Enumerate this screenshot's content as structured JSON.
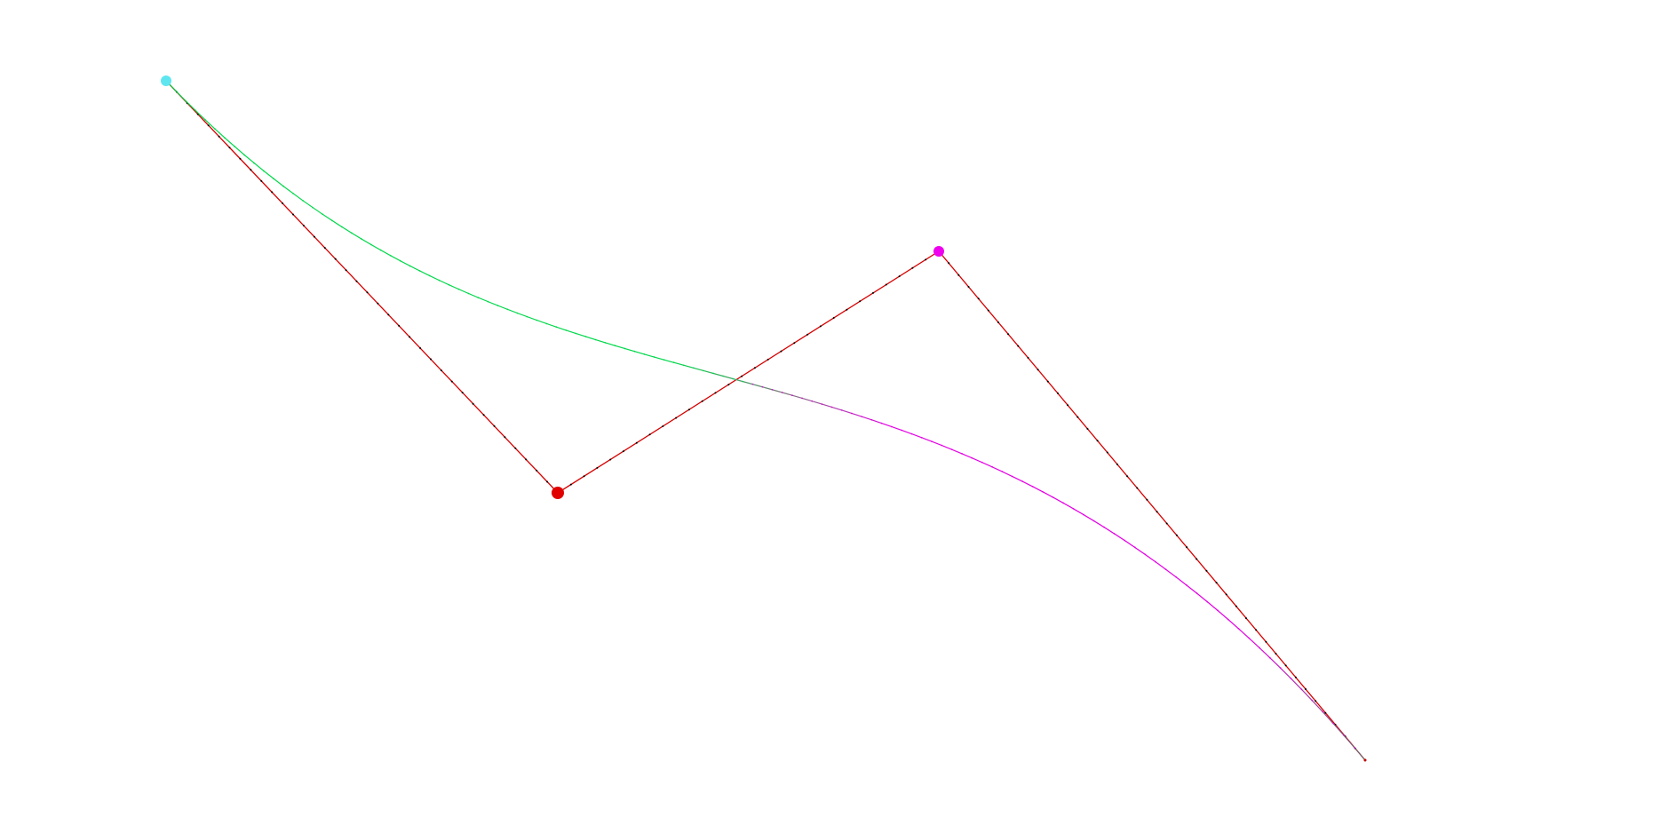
{
  "bezier": {
    "colors": {
      "background": "#ffffff",
      "control_polygon": "#d40000",
      "control_polygon_dots": "#000000",
      "curve_start": "#00d84a",
      "curve_end": "#e400e4",
      "start_point": "#5ee6f0",
      "control_point_1": "#e00000",
      "control_point_2": "#ee00ee"
    }
  }
}
